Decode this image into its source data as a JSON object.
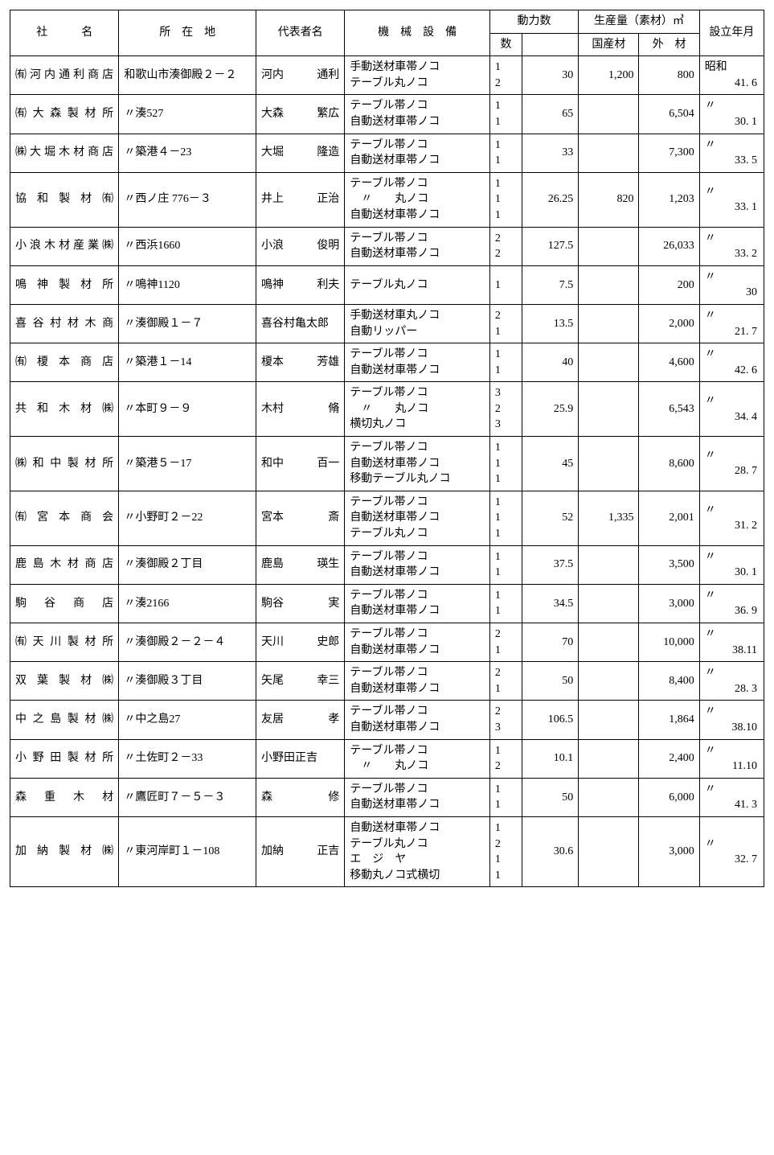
{
  "table": {
    "columns": {
      "name": "社　　　名",
      "addr": "所　在　地",
      "rep": "代表者名",
      "equip": "機　械　設　備",
      "power": "動力数",
      "power_count": "数",
      "power_val": "",
      "prod": "生産量（素材）㎥",
      "prod_dom": "国産材",
      "prod_for": "外　材",
      "est": "設立年月"
    },
    "column_widths_pct": [
      13.5,
      17,
      11,
      18,
      4,
      7,
      7.5,
      7.5,
      8
    ],
    "border_color": "#000000",
    "background_color": "#ffffff",
    "text_color": "#000000",
    "font_family": "Mincho serif",
    "font_size_pt": 10,
    "rows": [
      {
        "name": "㈲河内通利商店",
        "addr": "和歌山市湊御殿２－２",
        "rep_last": "河内",
        "rep_first": "通利",
        "equip": [
          "手動送材車帯ノコ",
          "テーブル丸ノコ"
        ],
        "pcount": [
          "1",
          "2"
        ],
        "pval": "30",
        "dom": "1,200",
        "for": "800",
        "est_top": "昭和",
        "est_bot": "41. 6"
      },
      {
        "name": "㈲大森製材所",
        "addr": "〃湊527",
        "rep_last": "大森",
        "rep_first": "繁広",
        "equip": [
          "テーブル帯ノコ",
          "自動送材車帯ノコ"
        ],
        "pcount": [
          "1",
          "1"
        ],
        "pval": "65",
        "dom": "",
        "for": "6,504",
        "est_top": "〃",
        "est_bot": "30. 1"
      },
      {
        "name": "㈱大堀木材商店",
        "addr": "〃築港４－23",
        "rep_last": "大堀",
        "rep_first": "隆造",
        "equip": [
          "テーブル帯ノコ",
          "自動送材車帯ノコ"
        ],
        "pcount": [
          "1",
          "1"
        ],
        "pval": "33",
        "dom": "",
        "for": "7,300",
        "est_top": "〃",
        "est_bot": "33. 5"
      },
      {
        "name": "協 和 製 材 ㈲",
        "addr": "〃西ノ庄 776－３",
        "rep_last": "井上",
        "rep_first": "正治",
        "equip": [
          "テーブル帯ノコ",
          "　〃　　丸ノコ",
          "自動送材車帯ノコ"
        ],
        "pcount": [
          "1",
          "1",
          "1"
        ],
        "pval": "26.25",
        "dom": "820",
        "for": "1,203",
        "est_top": "〃",
        "est_bot": "33. 1"
      },
      {
        "name": "小浪木材産業㈱",
        "addr": "〃西浜1660",
        "rep_last": "小浪",
        "rep_first": "俊明",
        "equip": [
          "テーブル帯ノコ",
          "自動送材車帯ノコ"
        ],
        "pcount": [
          "2",
          "2"
        ],
        "pval": "127.5",
        "dom": "",
        "for": "26,033",
        "est_top": "〃",
        "est_bot": "33. 2"
      },
      {
        "name": "鳴 神 製 材 所",
        "addr": "〃鳴神1120",
        "rep_last": "鳴神",
        "rep_first": "利夫",
        "equip": [
          "テーブル丸ノコ"
        ],
        "pcount": [
          "1"
        ],
        "pval": "7.5",
        "dom": "",
        "for": "200",
        "est_top": "〃",
        "est_bot": "30"
      },
      {
        "name": "喜谷村材木商",
        "addr": "〃湊御殿１－７",
        "rep_last": "喜谷村",
        "rep_first": "亀太郎",
        "rep_tight": true,
        "equip": [
          "手動送材車丸ノコ",
          "自動リッパー"
        ],
        "pcount": [
          "2",
          "1"
        ],
        "pval": "13.5",
        "dom": "",
        "for": "2,000",
        "est_top": "〃",
        "est_bot": "21. 7"
      },
      {
        "name": "㈲ 榎 本 商 店",
        "addr": "〃築港１－14",
        "rep_last": "榎本",
        "rep_first": "芳雄",
        "equip": [
          "テーブル帯ノコ",
          "自動送材車帯ノコ"
        ],
        "pcount": [
          "1",
          "1"
        ],
        "pval": "40",
        "dom": "",
        "for": "4,600",
        "est_top": "〃",
        "est_bot": "42. 6"
      },
      {
        "name": "共 和 木 材 ㈱",
        "addr": "〃本町９－９",
        "rep_last": "木村",
        "rep_first": "脩",
        "equip": [
          "テーブル帯ノコ",
          "　〃　　丸ノコ",
          "横切丸ノコ"
        ],
        "pcount": [
          "3",
          "2",
          "3"
        ],
        "pval": "25.9",
        "dom": "",
        "for": "6,543",
        "est_top": "〃",
        "est_bot": "34. 4"
      },
      {
        "name": "㈱和中製材所",
        "addr": "〃築港５－17",
        "rep_last": "和中",
        "rep_first": "百一",
        "equip": [
          "テーブル帯ノコ",
          "自動送材車帯ノコ",
          "移動テーブル丸ノコ"
        ],
        "pcount": [
          "1",
          "1",
          "1"
        ],
        "pval": "45",
        "dom": "",
        "for": "8,600",
        "est_top": "〃",
        "est_bot": "28. 7"
      },
      {
        "name": "㈲ 宮 本 商 会",
        "addr": "〃小野町２－22",
        "rep_last": "宮本",
        "rep_first": "斎",
        "equip": [
          "テーブル帯ノコ",
          "自動送材車帯ノコ",
          "テーブル丸ノコ"
        ],
        "pcount": [
          "1",
          "1",
          "1"
        ],
        "pval": "52",
        "dom": "1,335",
        "for": "2,001",
        "est_top": "〃",
        "est_bot": "31. 2"
      },
      {
        "name": "鹿島木材商店",
        "addr": "〃湊御殿２丁目",
        "rep_last": "鹿島",
        "rep_first": "瑛生",
        "equip": [
          "テーブル帯ノコ",
          "自動送材車帯ノコ"
        ],
        "pcount": [
          "1",
          "1"
        ],
        "pval": "37.5",
        "dom": "",
        "for": "3,500",
        "est_top": "〃",
        "est_bot": "30. 1"
      },
      {
        "name": "駒　谷　商　店",
        "addr": "〃湊2166",
        "rep_last": "駒谷",
        "rep_first": "実",
        "equip": [
          "テーブル帯ノコ",
          "自動送材車帯ノコ"
        ],
        "pcount": [
          "1",
          "1"
        ],
        "pval": "34.5",
        "dom": "",
        "for": "3,000",
        "est_top": "〃",
        "est_bot": "36. 9"
      },
      {
        "name": "㈲天川製材所",
        "addr": "〃湊御殿２－２－４",
        "rep_last": "天川",
        "rep_first": "史郎",
        "equip": [
          "テーブル帯ノコ",
          "自動送材車帯ノコ"
        ],
        "pcount": [
          "2",
          "1"
        ],
        "pval": "70",
        "dom": "",
        "for": "10,000",
        "est_top": "〃",
        "est_bot": "38.11"
      },
      {
        "name": "双 葉 製 材 ㈱",
        "addr": "〃湊御殿３丁目",
        "rep_last": "矢尾",
        "rep_first": "幸三",
        "equip": [
          "テーブル帯ノコ",
          "自動送材車帯ノコ"
        ],
        "pcount": [
          "2",
          "1"
        ],
        "pval": "50",
        "dom": "",
        "for": "8,400",
        "est_top": "〃",
        "est_bot": "28. 3"
      },
      {
        "name": "中之島製材㈱",
        "addr": "〃中之島27",
        "rep_last": "友居",
        "rep_first": "孝",
        "equip": [
          "テーブル帯ノコ",
          "自動送材車帯ノコ"
        ],
        "pcount": [
          "2",
          "3"
        ],
        "pval": "106.5",
        "dom": "",
        "for": "1,864",
        "est_top": "〃",
        "est_bot": "38.10"
      },
      {
        "name": "小野田製材所",
        "addr": "〃土佐町２－33",
        "rep_last": "小野田",
        "rep_first": "正吉",
        "rep_tight": true,
        "equip": [
          "テーブル帯ノコ",
          "　〃　　丸ノコ"
        ],
        "pcount": [
          "1",
          "2"
        ],
        "pval": "10.1",
        "dom": "",
        "for": "2,400",
        "est_top": "〃",
        "est_bot": "11.10"
      },
      {
        "name": "森　重　木　材",
        "addr": "〃鷹匠町７－５－３",
        "rep_last": "森",
        "rep_first": "修",
        "equip": [
          "テーブル帯ノコ",
          "自動送材車帯ノコ"
        ],
        "pcount": [
          "1",
          "1"
        ],
        "pval": "50",
        "dom": "",
        "for": "6,000",
        "est_top": "〃",
        "est_bot": "41. 3"
      },
      {
        "name": "加 納 製 材 ㈱",
        "addr": "〃東河岸町１－108",
        "rep_last": "加納",
        "rep_first": "正吉",
        "equip": [
          "自動送材車帯ノコ",
          "テーブル丸ノコ",
          "エ　ジ　ヤ",
          "移動丸ノコ式横切"
        ],
        "pcount": [
          "1",
          "2",
          "1",
          "1"
        ],
        "pval": "30.6",
        "dom": "",
        "for": "3,000",
        "est_top": "〃",
        "est_bot": "32. 7"
      }
    ]
  }
}
